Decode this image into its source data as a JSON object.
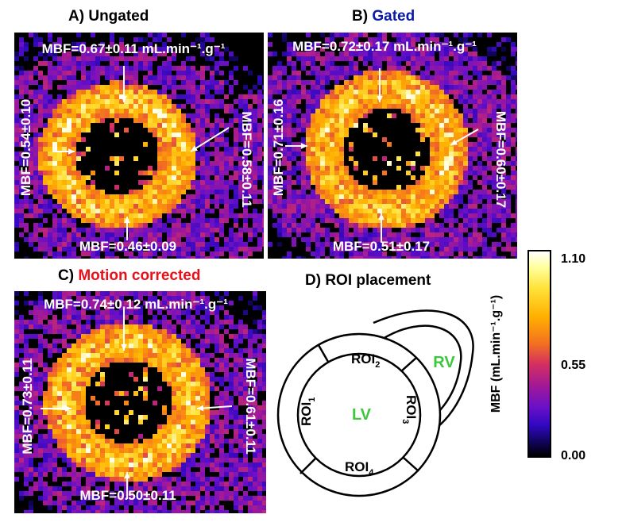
{
  "panels": [
    {
      "letter": "A)",
      "title": "Ungated",
      "title_color": "#000000",
      "labels": {
        "top": "MBF=0.67±0.11 mL.min⁻¹.g⁻¹",
        "left": "MBF=0.54±0.10",
        "right": "MBF=0.58±0.11",
        "bottom": "MBF=0.46±0.09"
      }
    },
    {
      "letter": "B)",
      "title": "Gated",
      "title_color": "#0a1aa8",
      "labels": {
        "top": "MBF=0.72±0.17 mL.min⁻¹.g⁻¹",
        "left": "MBF=0.71±0.16",
        "right": "MBF=0.60±0.17",
        "bottom": "MBF=0.51±0.17"
      }
    },
    {
      "letter": "C)",
      "title": "Motion corrected",
      "title_color": "#e8101a",
      "labels": {
        "top": "MBF=0.74±0.12 mL.min⁻¹.g⁻¹",
        "left": "MBF=0.73±0.11",
        "right": "MBF=0.61±0.11",
        "bottom": "MBF=0.50±0.11"
      }
    }
  ],
  "roi_panel": {
    "title": "D) ROI placement",
    "lv": "LV",
    "rv": "RV",
    "roi_text": "ROI",
    "roi_subs": [
      "2",
      "1",
      "3",
      "4"
    ],
    "label_color": "#3cc83c"
  },
  "colorbar": {
    "title": "MBF (mL.min⁻¹.g⁻¹)",
    "max": "1.10",
    "mid": "0.55",
    "min": "0.00"
  }
}
